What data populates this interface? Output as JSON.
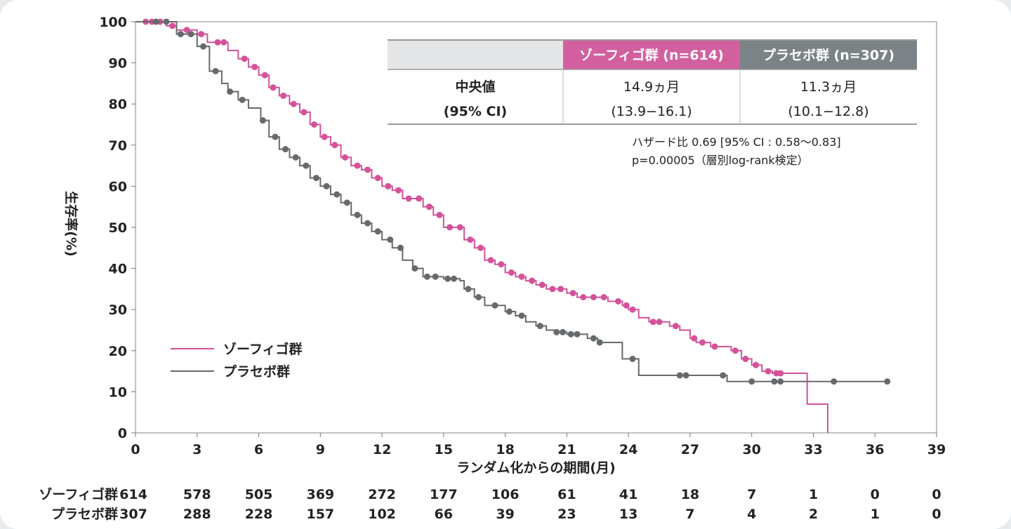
{
  "chart_data": {
    "type": "line",
    "subtype": "kaplan-meier",
    "xlabel": "ランダム化からの期間(月)",
    "ylabel": "生存率(%)",
    "xlim": [
      0,
      39
    ],
    "ylim": [
      0,
      100
    ],
    "xticks": [
      0,
      3,
      6,
      9,
      12,
      15,
      18,
      21,
      24,
      27,
      30,
      33,
      36,
      39
    ],
    "yticks": [
      0,
      10,
      20,
      30,
      40,
      50,
      60,
      70,
      80,
      90,
      100
    ],
    "legend_position": "left-bottom",
    "series": [
      {
        "name": "ゾーフィゴ群",
        "color": "#d4529a",
        "steps": [
          [
            0,
            100
          ],
          [
            1,
            100
          ],
          [
            1.5,
            99
          ],
          [
            2,
            98
          ],
          [
            3,
            97
          ],
          [
            3.5,
            95
          ],
          [
            4.5,
            93
          ],
          [
            5,
            91
          ],
          [
            5.5,
            89
          ],
          [
            6,
            87
          ],
          [
            6.5,
            84
          ],
          [
            7,
            82
          ],
          [
            7.5,
            80
          ],
          [
            8,
            78
          ],
          [
            8.5,
            75
          ],
          [
            9,
            72
          ],
          [
            9.5,
            70
          ],
          [
            10,
            67
          ],
          [
            10.5,
            65
          ],
          [
            11,
            64
          ],
          [
            11.5,
            62
          ],
          [
            12,
            60
          ],
          [
            12.5,
            59
          ],
          [
            13,
            57
          ],
          [
            14,
            55
          ],
          [
            14.5,
            53
          ],
          [
            15,
            50
          ],
          [
            16,
            47
          ],
          [
            16.5,
            45
          ],
          [
            17,
            42
          ],
          [
            17.5,
            41
          ],
          [
            18,
            39
          ],
          [
            18.5,
            38
          ],
          [
            19,
            37
          ],
          [
            19.5,
            36
          ],
          [
            20,
            35
          ],
          [
            21,
            34
          ],
          [
            21.5,
            33
          ],
          [
            23,
            32
          ],
          [
            23.7,
            31
          ],
          [
            24,
            30
          ],
          [
            24.5,
            28
          ],
          [
            25,
            27
          ],
          [
            26,
            26
          ],
          [
            26.5,
            25
          ],
          [
            27,
            23
          ],
          [
            27.3,
            22
          ],
          [
            28,
            21
          ],
          [
            29,
            20
          ],
          [
            29.5,
            18
          ],
          [
            30,
            16.5
          ],
          [
            30.5,
            15
          ],
          [
            31,
            14.5
          ],
          [
            32.7,
            7
          ],
          [
            33.7,
            0
          ]
        ],
        "censored": [
          0.5,
          0.8,
          1.2,
          1.8,
          2.5,
          3.2,
          4,
          4.3,
          5.3,
          5.8,
          6.3,
          6.7,
          7.2,
          7.7,
          8.2,
          8.7,
          9.2,
          9.7,
          10.2,
          10.8,
          11.3,
          11.8,
          12.3,
          12.8,
          13.3,
          13.8,
          14.3,
          14.8,
          15.3,
          15.8,
          16.3,
          16.8,
          17.3,
          17.8,
          18.3,
          18.8,
          19.3,
          19.8,
          20.3,
          20.7,
          21.3,
          21.8,
          22.3,
          22.8,
          23.5,
          23.9,
          24.2,
          25.2,
          25.5,
          26.3,
          27.2,
          27.6,
          28.2,
          29.2,
          29.7,
          30.2,
          30.8,
          31.2,
          31.4
        ]
      },
      {
        "name": "プラセボ群",
        "color": "#666a6c",
        "steps": [
          [
            0,
            100
          ],
          [
            1,
            100
          ],
          [
            2,
            97
          ],
          [
            3,
            94
          ],
          [
            3.6,
            88
          ],
          [
            4.2,
            85
          ],
          [
            4.5,
            83
          ],
          [
            5,
            81
          ],
          [
            5.5,
            79
          ],
          [
            6.1,
            76
          ],
          [
            6.5,
            72
          ],
          [
            7,
            69
          ],
          [
            7.5,
            67
          ],
          [
            8,
            65
          ],
          [
            8.5,
            62
          ],
          [
            9,
            60
          ],
          [
            9.5,
            58
          ],
          [
            10,
            56
          ],
          [
            10.5,
            53
          ],
          [
            11,
            51
          ],
          [
            11.5,
            49
          ],
          [
            12,
            47
          ],
          [
            12.5,
            45
          ],
          [
            13,
            42
          ],
          [
            13.5,
            40
          ],
          [
            14,
            38
          ],
          [
            15,
            37.5
          ],
          [
            15.8,
            37
          ],
          [
            16,
            35
          ],
          [
            16.5,
            33
          ],
          [
            17,
            31
          ],
          [
            18,
            29.5
          ],
          [
            18.5,
            28.5
          ],
          [
            19,
            27
          ],
          [
            19.5,
            26
          ],
          [
            20,
            25
          ],
          [
            20.5,
            24.5
          ],
          [
            21,
            24
          ],
          [
            22,
            23
          ],
          [
            22.5,
            22
          ],
          [
            23.7,
            18
          ],
          [
            24.5,
            14
          ],
          [
            28.8,
            12.5
          ],
          [
            36.5,
            12.5
          ]
        ],
        "censored": [
          1,
          1.5,
          2.2,
          2.7,
          3.3,
          3.9,
          4.6,
          5.2,
          6.2,
          6.8,
          7.3,
          7.8,
          8.3,
          8.8,
          9.3,
          9.8,
          10.3,
          10.8,
          11.3,
          11.8,
          12.4,
          12.9,
          13.6,
          14.2,
          14.6,
          15.2,
          15.5,
          16.2,
          16.7,
          17.5,
          18.2,
          18.8,
          19.7,
          20.5,
          20.8,
          21.2,
          21.5,
          22.3,
          22.6,
          24.2,
          26.5,
          26.8,
          28.6,
          30,
          31.1,
          31.4,
          34,
          36.6
        ]
      }
    ],
    "number_at_risk": {
      "rows": [
        {
          "label": "ゾーフィゴ群",
          "values": [
            614,
            578,
            505,
            369,
            272,
            177,
            106,
            61,
            41,
            18,
            7,
            1,
            0,
            0
          ]
        },
        {
          "label": "プラセボ群",
          "values": [
            307,
            288,
            228,
            157,
            102,
            66,
            39,
            23,
            13,
            7,
            4,
            2,
            1,
            0
          ]
        }
      ]
    },
    "summary_table": {
      "headers": [
        "",
        "ゾーフィゴ群 (n=614)",
        "プラセボ群 (n=307)"
      ],
      "row_label": [
        "中央値",
        "(95% CI)"
      ],
      "xofigo": [
        "14.9ヵ月",
        "(13.9−16.1)"
      ],
      "placebo": [
        "11.3ヵ月",
        "(10.1−12.8)"
      ]
    },
    "annotations": [
      "ハザード比 0.69 [95% CI : 0.58〜0.83]",
      "p=0.00005（層別log-rank検定）"
    ]
  }
}
